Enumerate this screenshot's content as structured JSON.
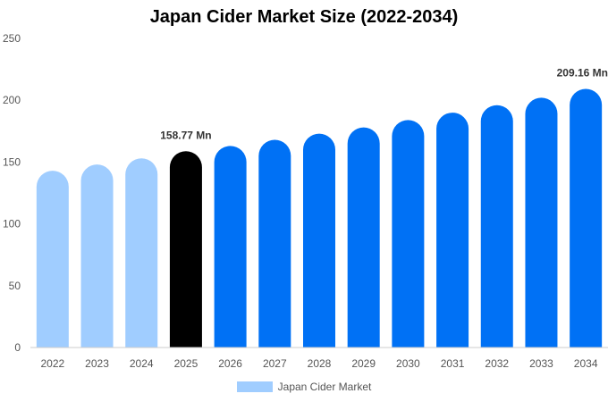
{
  "chart_data": {
    "type": "bar",
    "title": "Japan Cider Market Size (2022-2034)",
    "xlabel": "",
    "ylabel": "",
    "categories": [
      "2022",
      "2023",
      "2024",
      "2025",
      "2026",
      "2027",
      "2028",
      "2029",
      "2030",
      "2031",
      "2032",
      "2033",
      "2034"
    ],
    "series": [
      {
        "name": "Japan Cider Market",
        "values": [
          143,
          148,
          153,
          158.77,
          163,
          168,
          173,
          178,
          184,
          190,
          196,
          202,
          209.16
        ]
      }
    ],
    "bar_colors": [
      "#a0cdff",
      "#a0cdff",
      "#a0cdff",
      "#000000",
      "#0071f5",
      "#0071f5",
      "#0071f5",
      "#0071f5",
      "#0071f5",
      "#0071f5",
      "#0071f5",
      "#0071f5",
      "#0071f5"
    ],
    "data_labels": [
      {
        "index": 3,
        "text": "158.77 Mn"
      },
      {
        "index": 12,
        "text": "209.16 Mn"
      }
    ],
    "ylim": [
      0,
      250
    ],
    "yticks": [
      0,
      50,
      100,
      150,
      200,
      250
    ],
    "grid": false,
    "legend_position": "bottom",
    "legend_color": "#a0cdff"
  }
}
